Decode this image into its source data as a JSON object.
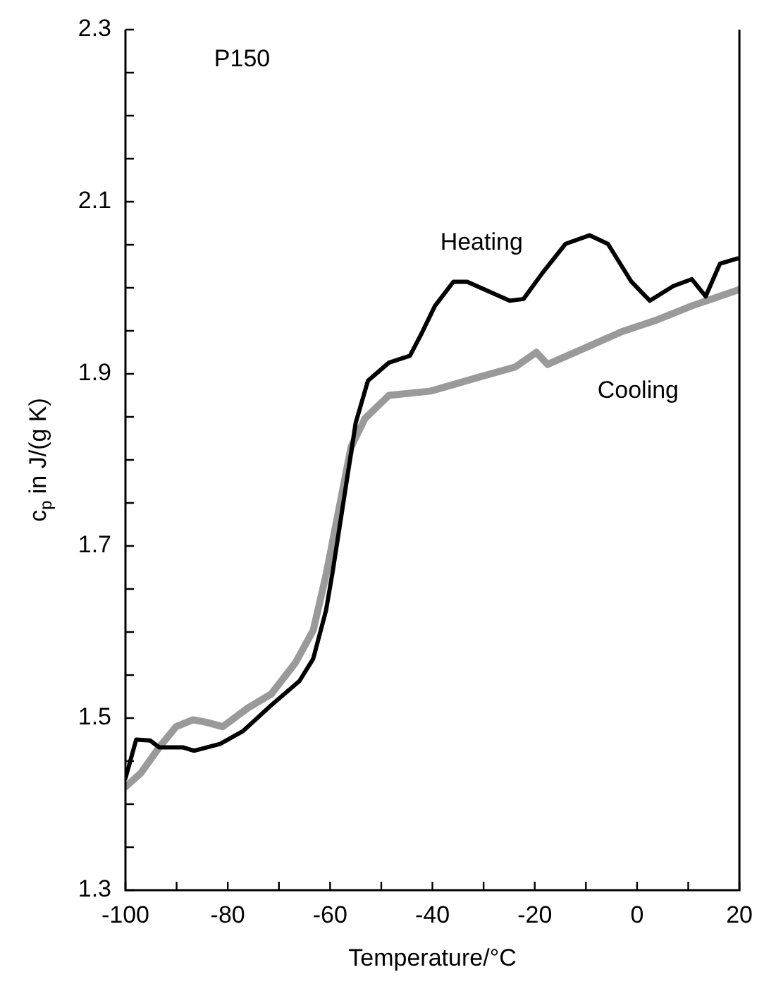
{
  "chart_data": {
    "type": "line",
    "xlabel": "Temperature/°C",
    "ylabel": "c$_{p}$ in J/(g K)",
    "annotations": [
      "P150"
    ],
    "xlim": [
      -100,
      20
    ],
    "xticks": [
      -100,
      {
        "value": -90,
        "label": null
      },
      -80,
      {
        "value": -70,
        "label": null
      },
      -60,
      {
        "value": -50,
        "label": null
      },
      -40,
      {
        "value": -30,
        "label": null
      },
      -20,
      {
        "value": -10,
        "label": null
      },
      0,
      {
        "value": 10,
        "label": null
      },
      20
    ],
    "ylim": [
      1.3,
      2.3
    ],
    "yticks": [
      1.3,
      {
        "value": 1.35,
        "label": null
      },
      {
        "value": 1.4,
        "label": null
      },
      {
        "value": 1.45,
        "label": null
      },
      1.5,
      {
        "value": 1.55,
        "label": null
      },
      {
        "value": 1.6,
        "label": null
      },
      {
        "value": 1.65,
        "label": null
      },
      1.7,
      {
        "value": 1.75,
        "label": null
      },
      {
        "value": 1.8,
        "label": null
      },
      {
        "value": 1.85,
        "label": null
      },
      1.9,
      {
        "value": 1.95,
        "label": null
      },
      {
        "value": 2.0,
        "label": null
      },
      {
        "value": 2.05,
        "label": null
      },
      2.1,
      {
        "value": 2.15,
        "label": null
      },
      {
        "value": 2.2,
        "label": null
      },
      {
        "value": 2.25,
        "label": null
      },
      2.3
    ],
    "grid": false,
    "legend": false,
    "marker": "none",
    "line_style": "solid",
    "series": [
      {
        "name": "Heating",
        "color": "#000000",
        "x": [
          -100,
          -97.9,
          -95.2,
          -93.4,
          -88.8,
          -86.6,
          -81.5,
          -77,
          -71.5,
          -66,
          -63.3,
          -60.8,
          -59.5,
          -55,
          -52.6,
          -48.5,
          -44.4,
          -42.2,
          -39.5,
          -35.9,
          -33.2,
          -24.9,
          -22.2,
          -18.4,
          -14,
          -9.3,
          -5.7,
          -1.1,
          2.5,
          7.1,
          10.7,
          13.4,
          16.2,
          19.5,
          20
        ],
        "values": [
          1.43,
          1.475,
          1.474,
          1.466,
          1.466,
          1.462,
          1.47,
          1.485,
          1.515,
          1.543,
          1.569,
          1.625,
          1.67,
          1.843,
          1.892,
          1.913,
          1.921,
          1.946,
          1.979,
          2.007,
          2.007,
          1.985,
          1.987,
          2.018,
          2.051,
          2.061,
          2.051,
          2.007,
          1.985,
          2.002,
          2.01,
          1.99,
          2.028,
          2.034,
          2.034
        ]
      },
      {
        "name": "Cooling",
        "color": "#9a9a9a",
        "x": [
          -100,
          -97,
          -93.4,
          -90.1,
          -86.8,
          -84.1,
          -81,
          -76,
          -71.5,
          -66.8,
          -63.3,
          -60.8,
          -55.9,
          -53.2,
          -48.5,
          -40.3,
          -30.4,
          -23.8,
          -19.7,
          -17.5,
          -10.2,
          -3,
          3.6,
          10.7,
          20
        ],
        "values": [
          1.42,
          1.436,
          1.466,
          1.49,
          1.498,
          1.495,
          1.49,
          1.512,
          1.528,
          1.564,
          1.602,
          1.666,
          1.815,
          1.848,
          1.875,
          1.88,
          1.897,
          1.908,
          1.925,
          1.911,
          1.93,
          1.949,
          1.962,
          1.979,
          1.998
        ]
      }
    ]
  }
}
